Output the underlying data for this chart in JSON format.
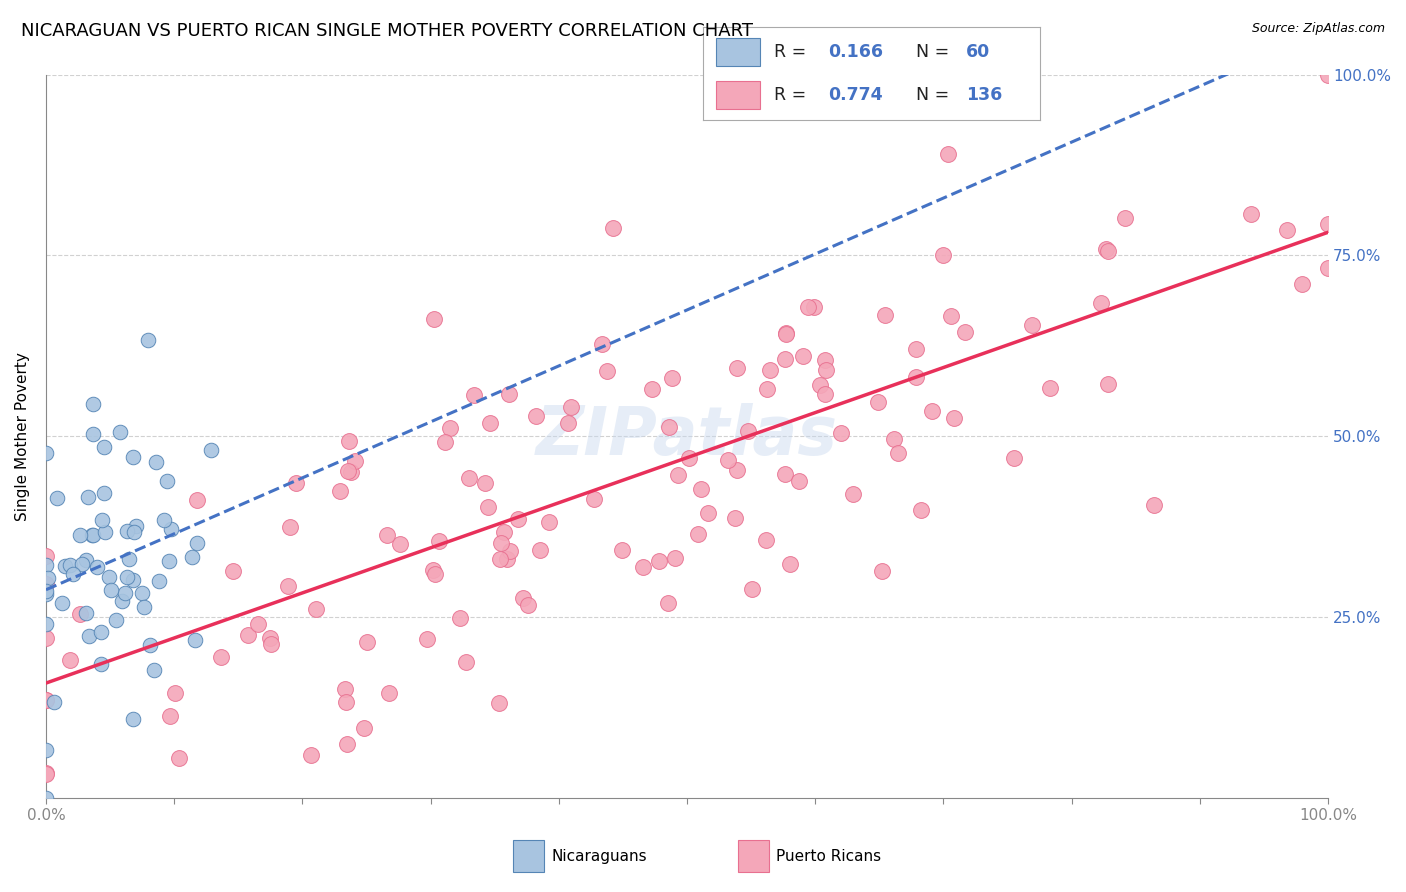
{
  "title": "NICARAGUAN VS PUERTO RICAN SINGLE MOTHER POVERTY CORRELATION CHART",
  "source": "Source: ZipAtlas.com",
  "ylabel": "Single Mother Poverty",
  "watermark": "ZIPatlas",
  "R_nic": 0.166,
  "N_nic": 60,
  "R_pr": 0.774,
  "N_pr": 136,
  "background_color": "#ffffff",
  "grid_color": "#cccccc",
  "scatter_nic_color": "#a8c4e0",
  "scatter_pr_color": "#f4a7b9",
  "scatter_nic_edge": "#5585b5",
  "scatter_pr_edge": "#e87090",
  "nic_line_color": "#4472c4",
  "pr_line_color": "#e8305a",
  "tick_label_color": "#4472c4",
  "title_fontsize": 13,
  "axis_label_fontsize": 11,
  "tick_fontsize": 11,
  "legend_fontsize": 13,
  "watermark_fontsize": 48,
  "watermark_color": "#c8d8ee",
  "watermark_alpha": 0.45
}
